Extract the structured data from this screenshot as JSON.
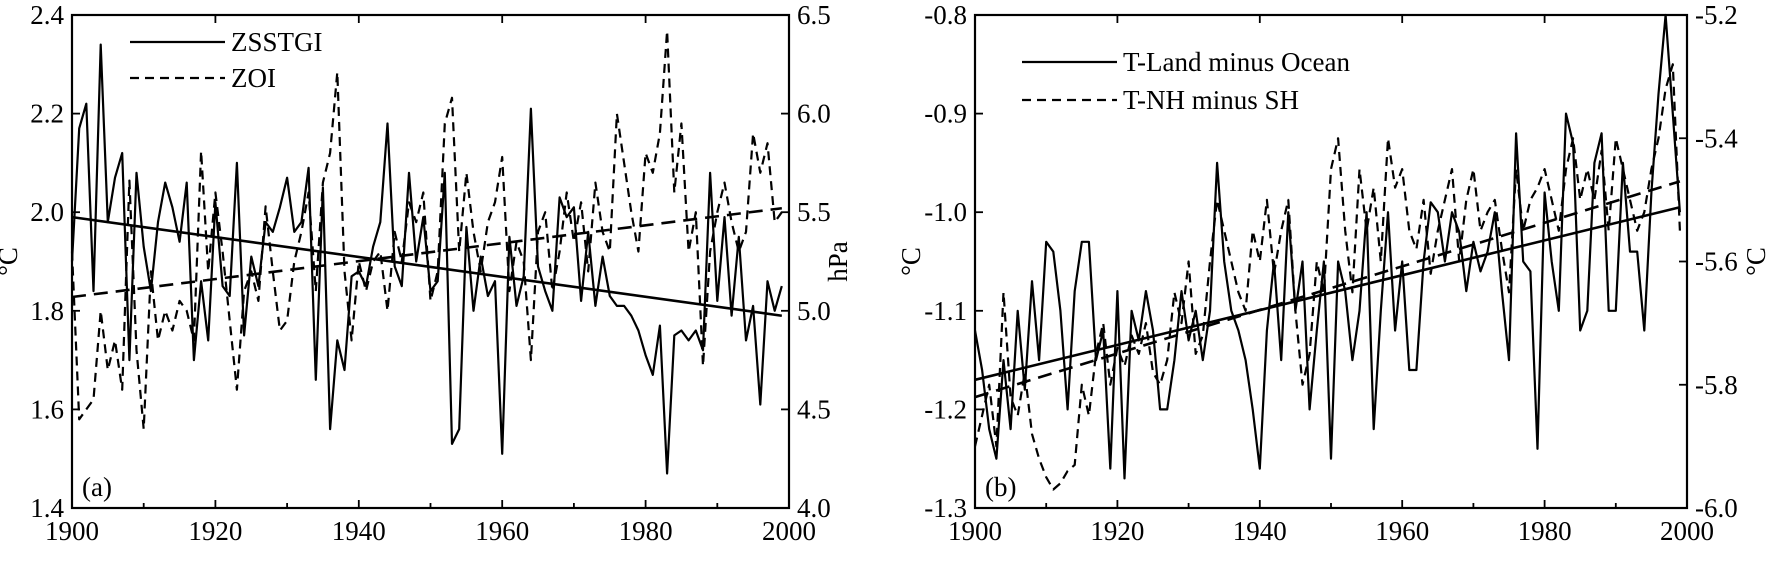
{
  "chart_data": [
    {
      "type": "line",
      "panel_label": "(a)",
      "xlabel": "",
      "ylabel_left": "°C",
      "ylabel_right": "hPa",
      "xlim": [
        1900,
        2000
      ],
      "ylim_left": [
        1.4,
        2.4
      ],
      "ylim_right": [
        4.0,
        6.5
      ],
      "xticks": [
        "1900",
        "1920",
        "1940",
        "1960",
        "1980",
        "2000"
      ],
      "yticks_left": [
        "1.4",
        "1.6",
        "1.8",
        "2.0",
        "2.2",
        "2.4"
      ],
      "yticks_right": [
        "4.0",
        "4.5",
        "5.0",
        "5.5",
        "6.0",
        "6.5"
      ],
      "legend_position": "top-left",
      "grid": false,
      "series": [
        {
          "name": "ZSSTGI",
          "axis": "left",
          "style": "solid",
          "x": [
            1900,
            1901,
            1902,
            1903,
            1904,
            1905,
            1906,
            1907,
            1908,
            1909,
            1910,
            1911,
            1912,
            1913,
            1914,
            1915,
            1916,
            1917,
            1918,
            1919,
            1920,
            1921,
            1922,
            1923,
            1924,
            1925,
            1926,
            1927,
            1928,
            1929,
            1930,
            1931,
            1932,
            1933,
            1934,
            1935,
            1936,
            1937,
            1938,
            1939,
            1940,
            1941,
            1942,
            1943,
            1944,
            1945,
            1946,
            1947,
            1948,
            1949,
            1950,
            1951,
            1952,
            1953,
            1954,
            1955,
            1956,
            1957,
            1958,
            1959,
            1960,
            1961,
            1962,
            1963,
            1964,
            1965,
            1966,
            1967,
            1968,
            1969,
            1970,
            1971,
            1972,
            1973,
            1974,
            1975,
            1976,
            1977,
            1978,
            1979,
            1980,
            1981,
            1982,
            1983,
            1984,
            1985,
            1986,
            1987,
            1988,
            1989,
            1990,
            1991,
            1992,
            1993,
            1994,
            1995,
            1996,
            1997,
            1998,
            1999
          ],
          "values": [
            1.9,
            2.17,
            2.22,
            1.84,
            2.34,
            1.98,
            2.07,
            2.12,
            1.7,
            2.08,
            1.93,
            1.84,
            1.98,
            2.06,
            2.01,
            1.94,
            2.06,
            1.7,
            1.86,
            1.74,
            2.02,
            1.85,
            1.83,
            2.1,
            1.75,
            1.91,
            1.85,
            1.98,
            1.96,
            2.01,
            2.07,
            1.96,
            1.98,
            2.09,
            1.66,
            2.05,
            1.56,
            1.74,
            1.68,
            1.87,
            1.88,
            1.85,
            1.93,
            1.98,
            2.18,
            1.89,
            1.85,
            2.08,
            1.9,
            1.99,
            1.84,
            1.86,
            2.08,
            1.53,
            1.56,
            1.97,
            1.8,
            1.91,
            1.83,
            1.86,
            1.51,
            1.95,
            1.81,
            1.87,
            2.21,
            1.89,
            1.84,
            1.8,
            2.03,
            1.99,
            2.01,
            1.82,
            1.96,
            1.81,
            1.91,
            1.83,
            1.81,
            1.81,
            1.79,
            1.76,
            1.71,
            1.67,
            1.77,
            1.47,
            1.75,
            1.76,
            1.74,
            1.76,
            1.72,
            2.08,
            1.82,
            1.99,
            1.79,
            1.95,
            1.74,
            1.81,
            1.61,
            1.86,
            1.8,
            1.85
          ]
        },
        {
          "name": "ZOI",
          "axis": "right",
          "style": "dashed",
          "x": [
            1900,
            1901,
            1902,
            1903,
            1904,
            1905,
            1906,
            1907,
            1908,
            1909,
            1910,
            1911,
            1912,
            1913,
            1914,
            1915,
            1916,
            1917,
            1918,
            1919,
            1920,
            1921,
            1922,
            1923,
            1924,
            1925,
            1926,
            1927,
            1928,
            1929,
            1930,
            1931,
            1932,
            1933,
            1934,
            1935,
            1936,
            1937,
            1938,
            1939,
            1940,
            1941,
            1942,
            1943,
            1944,
            1945,
            1946,
            1947,
            1948,
            1949,
            1950,
            1951,
            1952,
            1953,
            1954,
            1955,
            1956,
            1957,
            1958,
            1959,
            1960,
            1961,
            1962,
            1963,
            1964,
            1965,
            1966,
            1967,
            1968,
            1969,
            1970,
            1971,
            1972,
            1973,
            1974,
            1975,
            1976,
            1977,
            1978,
            1979,
            1980,
            1981,
            1982,
            1983,
            1984,
            1985,
            1986,
            1987,
            1988,
            1989,
            1990,
            1991,
            1992,
            1993,
            1994,
            1995,
            1996,
            1997,
            1998,
            1999
          ],
          "values": [
            5.3,
            4.45,
            4.5,
            4.55,
            5.0,
            4.7,
            4.85,
            4.6,
            5.66,
            4.8,
            4.4,
            5.2,
            4.85,
            5.0,
            4.9,
            5.05,
            5.0,
            4.85,
            5.81,
            5.2,
            5.6,
            5.3,
            4.95,
            4.6,
            5.1,
            5.2,
            5.05,
            5.53,
            5.2,
            4.9,
            4.95,
            5.25,
            5.4,
            5.6,
            5.1,
            5.65,
            5.8,
            6.21,
            5.2,
            4.85,
            5.25,
            5.1,
            5.25,
            5.3,
            5.0,
            5.4,
            5.25,
            5.55,
            5.45,
            5.6,
            5.05,
            5.2,
            5.95,
            6.08,
            5.3,
            5.7,
            5.4,
            5.2,
            5.45,
            5.55,
            5.78,
            5.1,
            5.35,
            5.25,
            4.75,
            5.4,
            5.5,
            5.1,
            5.3,
            5.6,
            5.35,
            5.55,
            5.2,
            5.65,
            5.4,
            5.3,
            6.0,
            5.75,
            5.5,
            5.3,
            5.8,
            5.7,
            5.9,
            6.42,
            5.6,
            5.95,
            5.3,
            5.5,
            4.72,
            5.3,
            5.5,
            5.65,
            5.45,
            5.3,
            5.4,
            5.9,
            5.7,
            5.85,
            5.45,
            5.5
          ]
        }
      ],
      "trend_lines": [
        {
          "series": "ZSSTGI",
          "axis": "left",
          "style": "solid",
          "x": [
            1900,
            1999
          ],
          "values": [
            1.99,
            1.79
          ]
        },
        {
          "series": "ZOI",
          "axis": "right",
          "style": "dashed",
          "x": [
            1900,
            1999
          ],
          "values": [
            5.07,
            5.52
          ]
        }
      ]
    },
    {
      "type": "line",
      "panel_label": "(b)",
      "xlabel": "",
      "ylabel_left": "°C",
      "ylabel_right": "°C",
      "xlim": [
        1900,
        2000
      ],
      "ylim_left": [
        -1.3,
        -0.8
      ],
      "ylim_right": [
        -6.0,
        -5.2
      ],
      "xticks": [
        "1900",
        "1920",
        "1940",
        "1960",
        "1980",
        "2000"
      ],
      "yticks_left": [
        "-1.3",
        "-1.2",
        "-1.1",
        "-1.0",
        "-0.9",
        "-0.8"
      ],
      "yticks_right": [
        "-6.0",
        "-5.8",
        "-5.6",
        "-5.4",
        "-5.2"
      ],
      "legend_position": "top-left",
      "grid": false,
      "series": [
        {
          "name": "T-Land minus Ocean",
          "axis": "left",
          "style": "solid",
          "x": [
            1900,
            1901,
            1902,
            1903,
            1904,
            1905,
            1906,
            1907,
            1908,
            1909,
            1910,
            1911,
            1912,
            1913,
            1914,
            1915,
            1916,
            1917,
            1918,
            1919,
            1920,
            1921,
            1922,
            1923,
            1924,
            1925,
            1926,
            1927,
            1928,
            1929,
            1930,
            1931,
            1932,
            1933,
            1934,
            1935,
            1936,
            1937,
            1938,
            1939,
            1940,
            1941,
            1942,
            1943,
            1944,
            1945,
            1946,
            1947,
            1948,
            1949,
            1950,
            1951,
            1952,
            1953,
            1954,
            1955,
            1956,
            1957,
            1958,
            1959,
            1960,
            1961,
            1962,
            1963,
            1964,
            1965,
            1966,
            1967,
            1968,
            1969,
            1970,
            1971,
            1972,
            1973,
            1974,
            1975,
            1976,
            1977,
            1978,
            1979,
            1980,
            1981,
            1982,
            1983,
            1984,
            1985,
            1986,
            1987,
            1988,
            1989,
            1990,
            1991,
            1992,
            1993,
            1994,
            1995,
            1996,
            1997,
            1998,
            1999
          ],
          "values": [
            -1.12,
            -1.16,
            -1.22,
            -1.25,
            -1.15,
            -1.22,
            -1.1,
            -1.18,
            -1.07,
            -1.15,
            -1.03,
            -1.04,
            -1.1,
            -1.2,
            -1.08,
            -1.03,
            -1.03,
            -1.15,
            -1.12,
            -1.26,
            -1.08,
            -1.27,
            -1.1,
            -1.13,
            -1.08,
            -1.12,
            -1.2,
            -1.2,
            -1.15,
            -1.08,
            -1.13,
            -1.1,
            -1.15,
            -1.1,
            -0.95,
            -1.05,
            -1.1,
            -1.12,
            -1.15,
            -1.2,
            -1.26,
            -1.12,
            -1.05,
            -1.15,
            -1.0,
            -1.1,
            -1.05,
            -1.2,
            -1.12,
            -1.05,
            -1.25,
            -1.05,
            -1.08,
            -1.15,
            -1.1,
            -1.0,
            -1.22,
            -1.1,
            -1.0,
            -1.12,
            -1.05,
            -1.16,
            -1.16,
            -1.05,
            -0.99,
            -1.0,
            -1.05,
            -1.0,
            -1.02,
            -1.08,
            -1.03,
            -1.06,
            -1.04,
            -1.0,
            -1.08,
            -1.15,
            -0.92,
            -1.05,
            -1.06,
            -1.24,
            -0.98,
            -1.05,
            -1.1,
            -0.9,
            -0.93,
            -1.12,
            -1.1,
            -0.95,
            -0.92,
            -1.1,
            -1.1,
            -0.95,
            -1.04,
            -1.04,
            -1.12,
            -0.98,
            -0.88,
            -0.8,
            -0.9,
            -1.0
          ]
        },
        {
          "name": "T-NH minus SH",
          "axis": "right",
          "style": "dashed",
          "x": [
            1900,
            1901,
            1902,
            1903,
            1904,
            1905,
            1906,
            1907,
            1908,
            1909,
            1910,
            1911,
            1912,
            1913,
            1914,
            1915,
            1916,
            1917,
            1918,
            1919,
            1920,
            1921,
            1922,
            1923,
            1924,
            1925,
            1926,
            1927,
            1928,
            1929,
            1930,
            1931,
            1932,
            1933,
            1934,
            1935,
            1936,
            1937,
            1938,
            1939,
            1940,
            1941,
            1942,
            1943,
            1944,
            1945,
            1946,
            1947,
            1948,
            1949,
            1950,
            1951,
            1952,
            1953,
            1954,
            1955,
            1956,
            1957,
            1958,
            1959,
            1960,
            1961,
            1962,
            1963,
            1964,
            1965,
            1966,
            1967,
            1968,
            1969,
            1970,
            1971,
            1972,
            1973,
            1974,
            1975,
            1976,
            1977,
            1978,
            1979,
            1980,
            1981,
            1982,
            1983,
            1984,
            1985,
            1986,
            1987,
            1988,
            1989,
            1990,
            1991,
            1992,
            1993,
            1994,
            1995,
            1996,
            1997,
            1998,
            1999
          ],
          "values": [
            -5.9,
            -5.85,
            -5.8,
            -5.9,
            -5.65,
            -5.82,
            -5.85,
            -5.78,
            -5.88,
            -5.92,
            -5.95,
            -5.97,
            -5.96,
            -5.94,
            -5.93,
            -5.8,
            -5.85,
            -5.75,
            -5.7,
            -5.8,
            -5.74,
            -5.77,
            -5.72,
            -5.75,
            -5.7,
            -5.78,
            -5.8,
            -5.76,
            -5.65,
            -5.7,
            -5.6,
            -5.75,
            -5.72,
            -5.6,
            -5.5,
            -5.55,
            -5.6,
            -5.65,
            -5.68,
            -5.55,
            -5.6,
            -5.5,
            -5.62,
            -5.55,
            -5.5,
            -5.68,
            -5.8,
            -5.75,
            -5.6,
            -5.65,
            -5.45,
            -5.4,
            -5.55,
            -5.65,
            -5.45,
            -5.55,
            -5.48,
            -5.6,
            -5.4,
            -5.48,
            -5.45,
            -5.55,
            -5.58,
            -5.5,
            -5.62,
            -5.55,
            -5.5,
            -5.45,
            -5.6,
            -5.5,
            -5.45,
            -5.55,
            -5.52,
            -5.5,
            -5.58,
            -5.65,
            -5.45,
            -5.55,
            -5.5,
            -5.48,
            -5.45,
            -5.5,
            -5.55,
            -5.45,
            -5.4,
            -5.5,
            -5.45,
            -5.5,
            -5.42,
            -5.55,
            -5.4,
            -5.45,
            -5.5,
            -5.55,
            -5.52,
            -5.45,
            -5.4,
            -5.32,
            -5.28,
            -5.55
          ]
        }
      ],
      "trend_lines": [
        {
          "series": "T-Land minus Ocean",
          "axis": "left",
          "style": "solid",
          "x": [
            1900,
            1999
          ],
          "values": [
            -1.17,
            -0.995
          ]
        },
        {
          "series": "T-NH minus SH",
          "axis": "right",
          "style": "dashed",
          "x": [
            1900,
            1999
          ],
          "values": [
            -5.82,
            -5.47
          ]
        }
      ]
    }
  ]
}
